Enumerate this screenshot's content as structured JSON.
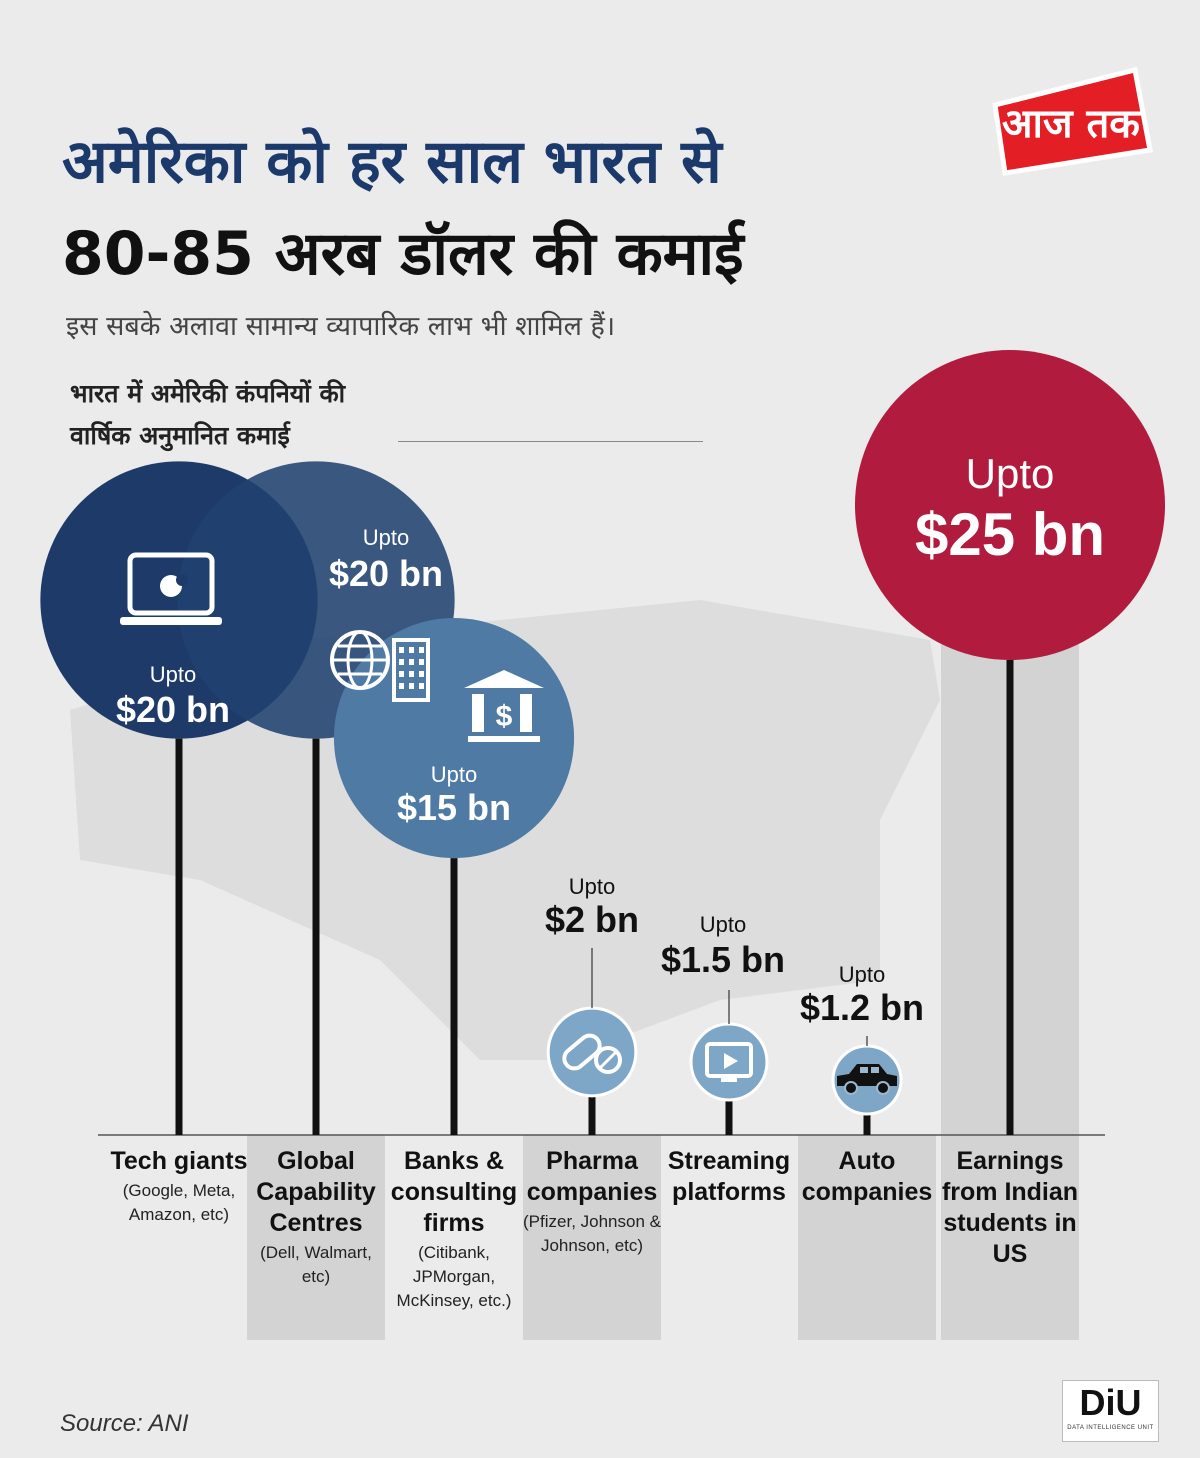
{
  "header": {
    "title_line1": "अमेरिका को हर साल भारत से",
    "title_line2": "80-85 अरब डॉलर की कमाई",
    "subtitle": "इस सबके अलावा सामान्य व्यापारिक लाभ भी शामिल हैं।",
    "chart_label_line1": "भारत में अमेरिकी कंपनियों की",
    "chart_label_line2": "वार्षिक अनुमानित कमाई"
  },
  "logo": {
    "text": "आज तक",
    "color": "#e31e24"
  },
  "footer": {
    "source": "Source: ANI",
    "badge": "DiU",
    "badge_caption": "DATA INTELLIGENCE UNIT"
  },
  "colors": {
    "dark_navy": "#1d3a68",
    "mid_blue": "#21426f",
    "steel_blue": "#4e7aa3",
    "light_blue": "#7ea6c6",
    "crimson": "#b01b3e",
    "stem": "#111111"
  },
  "chart_data": {
    "type": "bubble",
    "unit": "bn",
    "series": [
      {
        "prefix": "Upto",
        "label": "$20 bn",
        "value": 20,
        "category": "Tech giants",
        "detail": "(Google, Meta, Amazon, etc)",
        "icon": "laptop-apple-icon",
        "color": "dark_navy"
      },
      {
        "prefix": "Upto",
        "label": "$20 bn",
        "value": 20,
        "category": "Global Capability Centres",
        "detail": "(Dell, Walmart, etc)",
        "icon": "globe-building-icon",
        "color": "mid_blue"
      },
      {
        "prefix": "Upto",
        "label": "$15 bn",
        "value": 15,
        "category": "Banks & consulting firms",
        "detail": "(Citibank, JPMorgan, McKinsey, etc.)",
        "icon": "bank-icon",
        "color": "steel_blue"
      },
      {
        "prefix": "Upto",
        "label": "$2 bn",
        "value": 2,
        "category": "Pharma companies",
        "detail": "(Pfizer, Johnson & Johnson, etc)",
        "icon": "pill-icon",
        "color": "light_blue"
      },
      {
        "prefix": "Upto",
        "label": "$1.5 bn",
        "value": 1.5,
        "category": "Streaming platforms",
        "detail": "",
        "icon": "play-screen-icon",
        "color": "light_blue"
      },
      {
        "prefix": "Upto",
        "label": "$1.2 bn",
        "value": 1.2,
        "category": "Auto companies",
        "detail": "",
        "icon": "car-icon",
        "color": "light_blue"
      },
      {
        "prefix": "Upto",
        "label": "$25 bn",
        "value": 25,
        "category": "Earnings from Indian students in US",
        "detail": "",
        "icon": "",
        "color": "crimson"
      }
    ]
  }
}
